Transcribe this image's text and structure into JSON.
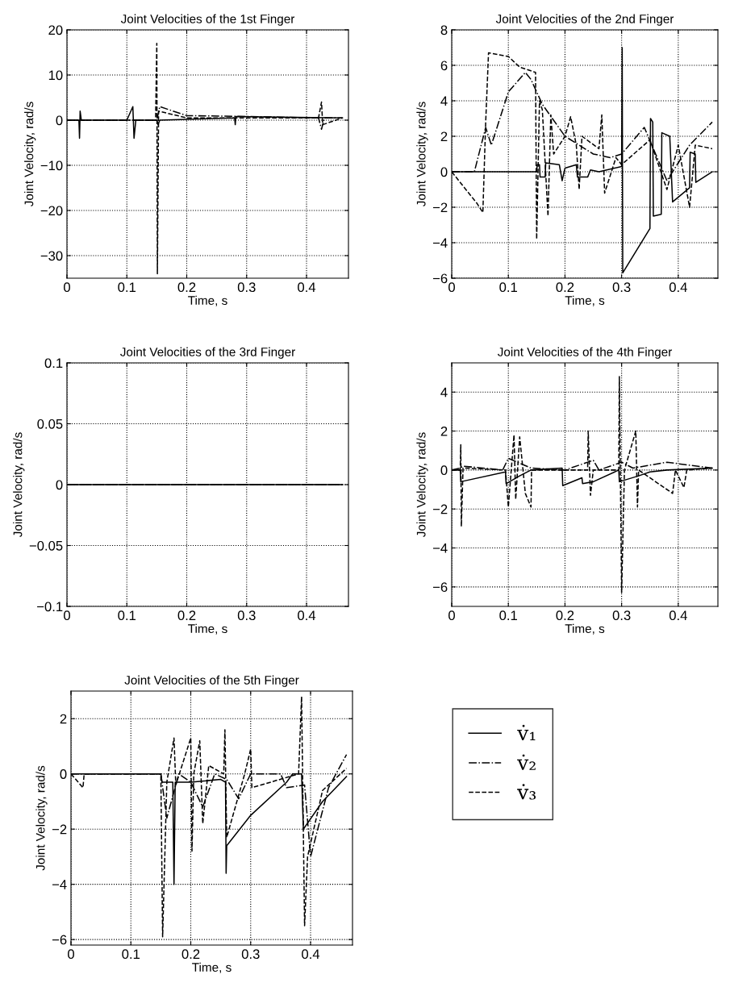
{
  "chart_data": [
    {
      "type": "line",
      "title": "Joint Velocities of the 1st Finger",
      "xlabel": "Time, s",
      "ylabel": "Joint Velocity, rad/s",
      "xlim": [
        0,
        0.47
      ],
      "ylim": [
        -35,
        20
      ],
      "xticks": [
        0,
        0.1,
        0.2,
        0.3,
        0.4
      ],
      "yticks": [
        -30,
        -20,
        -10,
        0,
        10,
        20
      ],
      "grid": true,
      "series": [
        {
          "color": "#000000",
          "line_style": "solid",
          "x": [
            0,
            0.02,
            0.021,
            0.022,
            0.024,
            0.1,
            0.11,
            0.112,
            0.115,
            0.15,
            0.152,
            0.155,
            0.28,
            0.281,
            0.282,
            0.46
          ],
          "values": [
            0,
            0,
            -4,
            2,
            0,
            0,
            3,
            -4,
            0,
            0,
            -1,
            0,
            0.5,
            -1,
            0.8,
            0.5
          ]
        },
        {
          "color": "#000000",
          "line_style": "dashdot",
          "x": [
            0,
            0.15,
            0.155,
            0.2,
            0.3,
            0.42,
            0.425,
            0.43,
            0.46
          ],
          "values": [
            0,
            0,
            3,
            1,
            0.8,
            0.5,
            -2,
            0.5,
            0.5
          ]
        },
        {
          "color": "#000000",
          "line_style": "dashed",
          "x": [
            0,
            0.148,
            0.15,
            0.151,
            0.153,
            0.2,
            0.42,
            0.425,
            0.427,
            0.46
          ],
          "values": [
            0,
            0,
            17,
            -34,
            2,
            0.5,
            0.5,
            4,
            -1,
            0.5
          ]
        }
      ]
    },
    {
      "type": "line",
      "title": "Joint Velocities of the 2nd Finger",
      "xlabel": "Time, s",
      "ylabel": "Joint Velocity, rad/s",
      "xlim": [
        0,
        0.47
      ],
      "ylim": [
        -6,
        8
      ],
      "xticks": [
        0,
        0.1,
        0.2,
        0.3,
        0.4
      ],
      "yticks": [
        -6,
        -4,
        -2,
        0,
        2,
        4,
        6,
        8
      ],
      "grid": true,
      "series": [
        {
          "color": "#000000",
          "line_style": "solid",
          "x": [
            0,
            0.15,
            0.151,
            0.155,
            0.156,
            0.165,
            0.166,
            0.19,
            0.195,
            0.2,
            0.22,
            0.222,
            0.24,
            0.245,
            0.26,
            0.3,
            0.301,
            0.302,
            0.35,
            0.351,
            0.355,
            0.356,
            0.37,
            0.371,
            0.385,
            0.39,
            0.42,
            0.421,
            0.43,
            0.431,
            0.46
          ],
          "values": [
            0,
            0,
            0.4,
            0.4,
            -0.3,
            -0.3,
            0.5,
            0.4,
            -0.5,
            0.2,
            0.4,
            -0.3,
            -0.3,
            0.1,
            0,
            0.3,
            7,
            -5.7,
            -3.2,
            3,
            2.8,
            -2.5,
            -2.4,
            2.2,
            2,
            -1.7,
            -0.9,
            1.1,
            1,
            -0.6,
            0
          ]
        },
        {
          "color": "#000000",
          "line_style": "dashdot",
          "x": [
            0,
            0.04,
            0.06,
            0.07,
            0.1,
            0.13,
            0.14,
            0.15,
            0.16,
            0.2,
            0.25,
            0.28,
            0.3,
            0.34,
            0.36,
            0.38,
            0.4,
            0.42,
            0.46
          ],
          "values": [
            0,
            0,
            2.5,
            1.5,
            4.5,
            5.6,
            5.2,
            4.5,
            3.8,
            2,
            1,
            0.8,
            1,
            2.5,
            1,
            -0.5,
            0.5,
            1.5,
            2.8
          ]
        },
        {
          "color": "#000000",
          "line_style": "dashed",
          "x": [
            0,
            0.045,
            0.055,
            0.06,
            0.065,
            0.1,
            0.12,
            0.148,
            0.15,
            0.155,
            0.16,
            0.17,
            0.175,
            0.18,
            0.2,
            0.21,
            0.22,
            0.225,
            0.23,
            0.26,
            0.265,
            0.27,
            0.29,
            0.3,
            0.35,
            0.38,
            0.4,
            0.42,
            0.43,
            0.46
          ],
          "values": [
            0,
            -1.8,
            -2.3,
            2.8,
            6.7,
            6.5,
            5.9,
            5.6,
            -3.8,
            4,
            3.5,
            -2.5,
            3.2,
            1,
            2,
            3.1,
            1.5,
            -1,
            2,
            1.3,
            3.2,
            -1.2,
            0.8,
            0.4,
            1.8,
            -1,
            1.5,
            -2,
            1.5,
            1.3
          ]
        }
      ]
    },
    {
      "type": "line",
      "title": "Joint Velocities of the 3rd Finger",
      "xlabel": "Time, s",
      "ylabel": "Joint Velocity, rad/s",
      "xlim": [
        0,
        0.47
      ],
      "ylim": [
        -0.1,
        0.1
      ],
      "xticks": [
        0,
        0.1,
        0.2,
        0.3,
        0.4
      ],
      "yticks": [
        -0.1,
        -0.05,
        0,
        0.05,
        0.1
      ],
      "grid": true,
      "series": [
        {
          "color": "#000000",
          "line_style": "solid",
          "x": [
            0,
            0.46
          ],
          "values": [
            0,
            0
          ]
        },
        {
          "color": "#000000",
          "line_style": "dashdot",
          "x": [
            0,
            0.46
          ],
          "values": [
            0,
            0
          ]
        },
        {
          "color": "#000000",
          "line_style": "dashed",
          "x": [
            0,
            0.46
          ],
          "values": [
            0,
            0
          ]
        }
      ]
    },
    {
      "type": "line",
      "title": "Joint Velocities of the 4th Finger",
      "xlabel": "Time, s",
      "ylabel": "Joint Velocity, rad/s",
      "xlim": [
        0,
        0.47
      ],
      "ylim": [
        -7,
        5.5
      ],
      "xticks": [
        0,
        0.1,
        0.2,
        0.3,
        0.4
      ],
      "yticks": [
        -6,
        -4,
        -2,
        0,
        2,
        4
      ],
      "grid": true,
      "series": [
        {
          "color": "#000000",
          "line_style": "solid",
          "x": [
            0,
            0.015,
            0.016,
            0.095,
            0.096,
            0.12,
            0.14,
            0.195,
            0.196,
            0.23,
            0.231,
            0.25,
            0.295,
            0.296,
            0.33,
            0.35,
            0.38,
            0.46
          ],
          "values": [
            0,
            0,
            -0.6,
            -0.1,
            -0.7,
            -0.3,
            0,
            0.1,
            -0.8,
            -0.4,
            -0.7,
            -0.6,
            0,
            -0.6,
            -0.3,
            -0.1,
            0,
            0.1
          ]
        },
        {
          "color": "#000000",
          "line_style": "dashdot",
          "x": [
            0,
            0.015,
            0.02,
            0.09,
            0.1,
            0.14,
            0.2,
            0.23,
            0.25,
            0.26,
            0.3,
            0.32,
            0.38,
            0.46
          ],
          "values": [
            0,
            0.1,
            0.2,
            0,
            0.6,
            0.1,
            0,
            0.3,
            0.5,
            0,
            0.4,
            0.1,
            0.4,
            0.1
          ]
        },
        {
          "color": "#000000",
          "line_style": "dashed",
          "x": [
            0,
            0.015,
            0.016,
            0.017,
            0.02,
            0.095,
            0.1,
            0.11,
            0.113,
            0.12,
            0.13,
            0.14,
            0.141,
            0.24,
            0.241,
            0.245,
            0.25,
            0.295,
            0.296,
            0.3,
            0.305,
            0.325,
            0.328,
            0.33,
            0.39,
            0.395,
            0.41,
            0.415,
            0.46
          ],
          "values": [
            0,
            0,
            1.3,
            -2.9,
            0.1,
            0,
            -1.9,
            1.8,
            -1.5,
            1.7,
            -1.2,
            -1.9,
            0,
            0,
            2,
            -1.3,
            0,
            0,
            4.8,
            -6.3,
            0,
            2,
            -1.9,
            0,
            -1.2,
            0,
            -0.9,
            0,
            0.1
          ]
        }
      ]
    },
    {
      "type": "line",
      "title": "Joint Velocities of the 5th Finger",
      "xlabel": "Time, s",
      "ylabel": "Joint Velocity, rad/s",
      "xlim": [
        0,
        0.47
      ],
      "ylim": [
        -6.2,
        3
      ],
      "xticks": [
        0,
        0.1,
        0.2,
        0.3,
        0.4
      ],
      "yticks": [
        -6,
        -4,
        -2,
        0,
        2
      ],
      "grid": true,
      "legend": "right",
      "series": [
        {
          "name": "v̇₁",
          "color": "#000000",
          "line_style": "solid",
          "x": [
            0,
            0.15,
            0.152,
            0.17,
            0.172,
            0.174,
            0.2,
            0.25,
            0.258,
            0.259,
            0.26,
            0.3,
            0.36,
            0.37,
            0.385,
            0.388,
            0.42,
            0.46
          ],
          "values": [
            0,
            0,
            -0.3,
            -0.3,
            -4,
            -0.3,
            -0.3,
            -0.2,
            -0.3,
            -3.6,
            -2.6,
            -1.5,
            -0.3,
            0,
            0,
            -2,
            -1,
            -0.1
          ]
        },
        {
          "name": "v̇₂",
          "color": "#000000",
          "line_style": "dashdot",
          "x": [
            0,
            0.15,
            0.16,
            0.17,
            0.18,
            0.2,
            0.22,
            0.24,
            0.26,
            0.28,
            0.3,
            0.35,
            0.36,
            0.39,
            0.4,
            0.43,
            0.46
          ],
          "values": [
            0,
            0,
            -1.6,
            -0.8,
            0,
            -0.3,
            -1.2,
            0,
            -0.2,
            -0.9,
            0,
            0,
            -0.5,
            -0.4,
            -3,
            -0.5,
            0.7
          ]
        },
        {
          "name": "v̇₃",
          "color": "#000000",
          "line_style": "dashed",
          "x": [
            0,
            0.02,
            0.022,
            0.15,
            0.153,
            0.16,
            0.172,
            0.175,
            0.2,
            0.202,
            0.205,
            0.215,
            0.22,
            0.23,
            0.255,
            0.257,
            0.26,
            0.29,
            0.3,
            0.302,
            0.38,
            0.385,
            0.39,
            0.395,
            0.42,
            0.46
          ],
          "values": [
            0,
            -0.5,
            0,
            0,
            -5.9,
            -0.3,
            1.3,
            -0.4,
            1.3,
            -2.8,
            0,
            1.2,
            -1.8,
            0.3,
            0,
            1.6,
            -2.3,
            0,
            0.9,
            -0.5,
            0,
            2.8,
            -5.5,
            -3,
            -0.6,
            0.2
          ]
        }
      ]
    }
  ]
}
